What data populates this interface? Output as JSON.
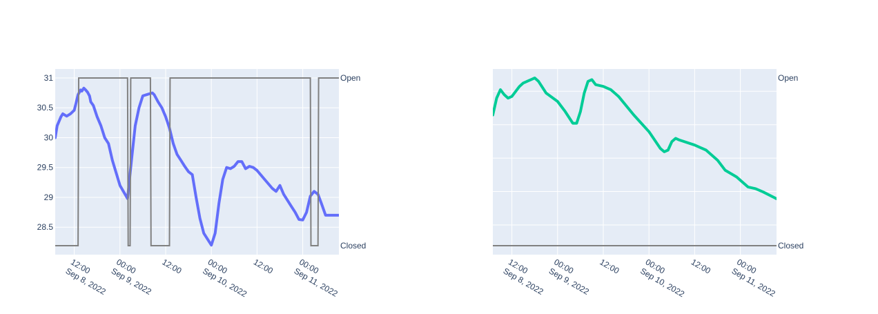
{
  "chart_data": [
    {
      "type": "line",
      "title": "",
      "x_tick_labels": [
        {
          "time": "12:00",
          "date": "Sep 8, 2022"
        },
        {
          "time": "00:00",
          "date": "Sep 9, 2022"
        },
        {
          "time": "12:00",
          "date": ""
        },
        {
          "time": "00:00",
          "date": "Sep 10, 2022"
        },
        {
          "time": "12:00",
          "date": ""
        },
        {
          "time": "00:00",
          "date": "Sep 11, 2022"
        }
      ],
      "x_tick_values": [
        "2022-09-08 12:00",
        "2022-09-09 00:00",
        "2022-09-09 12:00",
        "2022-09-10 00:00",
        "2022-09-10 12:00",
        "2022-09-11 00:00"
      ],
      "xlim": [
        "2022-09-08 07:00",
        "2022-09-11 09:30"
      ],
      "y_left_ticks": [
        "28.5",
        "29",
        "29.5",
        "30",
        "30.5",
        "31"
      ],
      "y_left_tick_values": [
        28.5,
        29,
        29.5,
        30,
        30.5,
        31
      ],
      "ylim_left": [
        28.04,
        31.15
      ],
      "y_right_ticks": [
        "Closed",
        "Open"
      ],
      "ylim_right_state": [
        "Closed",
        "Open"
      ],
      "series": [
        {
          "axis": "left",
          "color": "#636efa",
          "points": [
            [
              "2022-09-08 07:00",
              30.0
            ],
            [
              "2022-09-08 07:30",
              30.2
            ],
            [
              "2022-09-08 08:30",
              30.35
            ],
            [
              "2022-09-08 09:00",
              30.4
            ],
            [
              "2022-09-08 10:00",
              30.36
            ],
            [
              "2022-09-08 11:00",
              30.4
            ],
            [
              "2022-09-08 12:00",
              30.46
            ],
            [
              "2022-09-08 13:00",
              30.72
            ],
            [
              "2022-09-08 13:40",
              30.8
            ],
            [
              "2022-09-08 14:00",
              30.78
            ],
            [
              "2022-09-08 14:30",
              30.83
            ],
            [
              "2022-09-08 15:00",
              30.8
            ],
            [
              "2022-09-08 15:30",
              30.76
            ],
            [
              "2022-09-08 16:00",
              30.7
            ],
            [
              "2022-09-08 16:20",
              30.6
            ],
            [
              "2022-09-08 17:00",
              30.54
            ],
            [
              "2022-09-08 18:00",
              30.35
            ],
            [
              "2022-09-08 19:00",
              30.2
            ],
            [
              "2022-09-08 20:00",
              30.0
            ],
            [
              "2022-09-08 21:00",
              29.9
            ],
            [
              "2022-09-08 22:00",
              29.62
            ],
            [
              "2022-09-09 00:00",
              29.2
            ],
            [
              "2022-09-09 02:00",
              28.98
            ],
            [
              "2022-09-09 03:00",
              29.6
            ],
            [
              "2022-09-09 04:00",
              30.2
            ],
            [
              "2022-09-09 05:00",
              30.5
            ],
            [
              "2022-09-09 06:00",
              30.7
            ],
            [
              "2022-09-09 07:00",
              30.72
            ],
            [
              "2022-09-09 08:30",
              30.75
            ],
            [
              "2022-09-09 09:00",
              30.72
            ],
            [
              "2022-09-09 10:00",
              30.6
            ],
            [
              "2022-09-09 11:00",
              30.5
            ],
            [
              "2022-09-09 12:00",
              30.35
            ],
            [
              "2022-09-09 13:00",
              30.16
            ],
            [
              "2022-09-09 14:00",
              29.9
            ],
            [
              "2022-09-09 15:00",
              29.72
            ],
            [
              "2022-09-09 16:00",
              29.62
            ],
            [
              "2022-09-09 17:00",
              29.52
            ],
            [
              "2022-09-09 18:00",
              29.43
            ],
            [
              "2022-09-09 19:00",
              29.38
            ],
            [
              "2022-09-09 20:00",
              29.0
            ],
            [
              "2022-09-09 21:00",
              28.65
            ],
            [
              "2022-09-09 22:00",
              28.4
            ],
            [
              "2022-09-10 00:00",
              28.2
            ],
            [
              "2022-09-10 01:00",
              28.4
            ],
            [
              "2022-09-10 02:00",
              28.9
            ],
            [
              "2022-09-10 03:00",
              29.3
            ],
            [
              "2022-09-10 04:00",
              29.5
            ],
            [
              "2022-09-10 05:00",
              29.48
            ],
            [
              "2022-09-10 06:00",
              29.52
            ],
            [
              "2022-09-10 07:00",
              29.6
            ],
            [
              "2022-09-10 08:00",
              29.6
            ],
            [
              "2022-09-10 09:00",
              29.48
            ],
            [
              "2022-09-10 10:00",
              29.52
            ],
            [
              "2022-09-10 11:00",
              29.5
            ],
            [
              "2022-09-10 12:00",
              29.45
            ],
            [
              "2022-09-10 14:00",
              29.3
            ],
            [
              "2022-09-10 16:00",
              29.15
            ],
            [
              "2022-09-10 17:00",
              29.1
            ],
            [
              "2022-09-10 18:00",
              29.2
            ],
            [
              "2022-09-10 19:00",
              29.05
            ],
            [
              "2022-09-10 21:00",
              28.85
            ],
            [
              "2022-09-10 22:00",
              28.75
            ],
            [
              "2022-09-10 23:00",
              28.63
            ],
            [
              "2022-09-11 00:00",
              28.62
            ],
            [
              "2022-09-11 01:00",
              28.75
            ],
            [
              "2022-09-11 02:00",
              29.02
            ],
            [
              "2022-09-11 03:00",
              29.1
            ],
            [
              "2022-09-11 04:00",
              29.05
            ],
            [
              "2022-09-11 05:00",
              28.88
            ],
            [
              "2022-09-11 06:00",
              28.7
            ],
            [
              "2022-09-11 09:30",
              28.7
            ]
          ]
        },
        {
          "axis": "right",
          "color": "#808080",
          "step_points": [
            [
              "2022-09-08 07:00",
              "Closed"
            ],
            [
              "2022-09-08 13:00",
              "Closed"
            ],
            [
              "2022-09-08 13:10",
              "Open"
            ],
            [
              "2022-09-09 02:00",
              "Open"
            ],
            [
              "2022-09-09 02:10",
              "Closed"
            ],
            [
              "2022-09-09 02:40",
              "Closed"
            ],
            [
              "2022-09-09 02:50",
              "Open"
            ],
            [
              "2022-09-09 08:00",
              "Open"
            ],
            [
              "2022-09-09 08:10",
              "Closed"
            ],
            [
              "2022-09-09 13:00",
              "Closed"
            ],
            [
              "2022-09-09 13:10",
              "Open"
            ],
            [
              "2022-09-11 02:00",
              "Open"
            ],
            [
              "2022-09-11 02:10",
              "Closed"
            ],
            [
              "2022-09-11 04:00",
              "Closed"
            ],
            [
              "2022-09-11 04:10",
              "Open"
            ],
            [
              "2022-09-11 09:30",
              "Open"
            ]
          ]
        }
      ]
    },
    {
      "type": "line",
      "title": "",
      "x_tick_labels": [
        {
          "time": "12:00",
          "date": "Sep 8, 2022"
        },
        {
          "time": "00:00",
          "date": "Sep 9, 2022"
        },
        {
          "time": "12:00",
          "date": ""
        },
        {
          "time": "00:00",
          "date": "Sep 10, 2022"
        },
        {
          "time": "12:00",
          "date": ""
        },
        {
          "time": "00:00",
          "date": "Sep 11, 2022"
        }
      ],
      "x_tick_values": [
        "2022-09-08 12:00",
        "2022-09-09 00:00",
        "2022-09-09 12:00",
        "2022-09-10 00:00",
        "2022-09-10 12:00",
        "2022-09-11 00:00"
      ],
      "xlim": [
        "2022-09-08 07:00",
        "2022-09-11 09:30"
      ],
      "y_right_ticks": [
        "Closed",
        "Open"
      ],
      "ylim_right_state": [
        "Closed",
        "Open"
      ],
      "series": [
        {
          "axis": "hidden",
          "color": "#00cc96",
          "points": [
            [
              "2022-09-08 07:00",
              0.78
            ],
            [
              "2022-09-08 08:00",
              0.88
            ],
            [
              "2022-09-08 09:00",
              0.93
            ],
            [
              "2022-09-08 10:00",
              0.9
            ],
            [
              "2022-09-08 11:00",
              0.88
            ],
            [
              "2022-09-08 12:00",
              0.89
            ],
            [
              "2022-09-08 13:00",
              0.92
            ],
            [
              "2022-09-08 14:00",
              0.95
            ],
            [
              "2022-09-08 15:00",
              0.97
            ],
            [
              "2022-09-08 17:00",
              0.99
            ],
            [
              "2022-09-08 18:00",
              1.0
            ],
            [
              "2022-09-08 19:00",
              0.98
            ],
            [
              "2022-09-08 21:00",
              0.91
            ],
            [
              "2022-09-09 00:00",
              0.86
            ],
            [
              "2022-09-09 02:00",
              0.8
            ],
            [
              "2022-09-09 04:00",
              0.73
            ],
            [
              "2022-09-09 05:00",
              0.73
            ],
            [
              "2022-09-09 06:00",
              0.8
            ],
            [
              "2022-09-09 07:00",
              0.91
            ],
            [
              "2022-09-09 08:00",
              0.98
            ],
            [
              "2022-09-09 09:00",
              0.99
            ],
            [
              "2022-09-09 10:00",
              0.96
            ],
            [
              "2022-09-09 12:00",
              0.95
            ],
            [
              "2022-09-09 14:00",
              0.93
            ],
            [
              "2022-09-09 16:00",
              0.89
            ],
            [
              "2022-09-09 20:00",
              0.78
            ],
            [
              "2022-09-10 00:00",
              0.68
            ],
            [
              "2022-09-10 03:00",
              0.58
            ],
            [
              "2022-09-10 04:00",
              0.56
            ],
            [
              "2022-09-10 05:00",
              0.57
            ],
            [
              "2022-09-10 06:00",
              0.62
            ],
            [
              "2022-09-10 07:00",
              0.64
            ],
            [
              "2022-09-10 08:00",
              0.63
            ],
            [
              "2022-09-10 12:00",
              0.6
            ],
            [
              "2022-09-10 15:00",
              0.57
            ],
            [
              "2022-09-10 18:00",
              0.51
            ],
            [
              "2022-09-10 20:00",
              0.45
            ],
            [
              "2022-09-10 23:00",
              0.41
            ],
            [
              "2022-09-11 02:00",
              0.35
            ],
            [
              "2022-09-11 04:00",
              0.34
            ],
            [
              "2022-09-11 06:00",
              0.32
            ],
            [
              "2022-09-11 09:30",
              0.28
            ]
          ]
        },
        {
          "axis": "right",
          "color": "#808080",
          "step_points": [
            [
              "2022-09-08 07:00",
              "Closed"
            ],
            [
              "2022-09-11 09:30",
              "Closed"
            ]
          ]
        }
      ]
    }
  ]
}
